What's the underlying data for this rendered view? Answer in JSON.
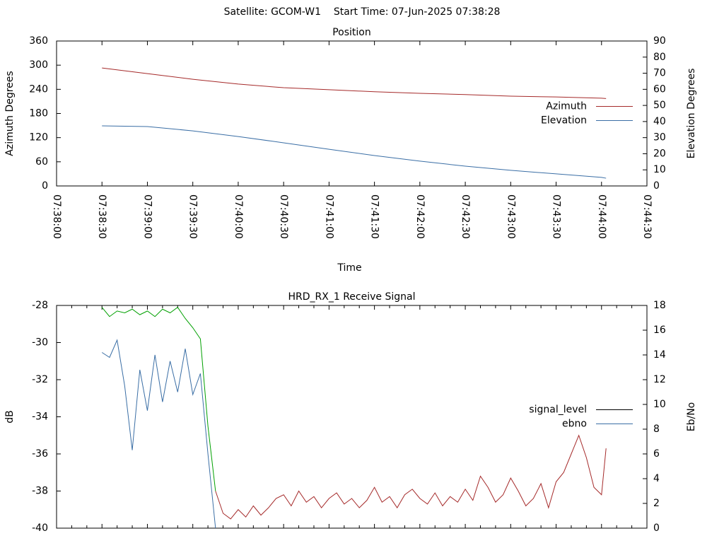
{
  "title": "Satellite: GCOM-W1    Start Time: 07-Jun-2025 07:38:28",
  "chart_data": [
    {
      "type": "line",
      "title": "Position",
      "x_label": "Time",
      "y_label": "Azimuth Degrees",
      "y2_label": "Elevation Degrees",
      "xlim": [
        "07:38:00",
        "07:44:30"
      ],
      "xticks": [
        "07:38:00",
        "07:38:30",
        "07:39:00",
        "07:39:30",
        "07:40:00",
        "07:40:30",
        "07:41:00",
        "07:41:30",
        "07:42:00",
        "07:42:30",
        "07:43:00",
        "07:43:30",
        "07:44:00",
        "07:44:30"
      ],
      "ylim": [
        0,
        360
      ],
      "yticks": [
        0,
        60,
        120,
        180,
        240,
        300,
        360
      ],
      "y2lim": [
        0,
        90
      ],
      "y2ticks": [
        0,
        10,
        20,
        30,
        40,
        50,
        60,
        70,
        80,
        90
      ],
      "legend": "right",
      "series": [
        {
          "name": "Azimuth",
          "color": "#a52a2a",
          "x": [
            "07:38:30",
            "07:39:00",
            "07:39:30",
            "07:40:00",
            "07:40:30",
            "07:41:00",
            "07:41:30",
            "07:42:00",
            "07:42:30",
            "07:43:00",
            "07:43:30",
            "07:44:00",
            "07:44:03"
          ],
          "values": [
            293,
            279,
            265,
            253,
            244,
            239,
            234,
            230,
            227,
            223,
            221,
            218,
            217
          ]
        },
        {
          "name": "Elevation",
          "color": "#3a6ea5",
          "axis": "y2",
          "x": [
            "07:38:30",
            "07:39:00",
            "07:39:30",
            "07:40:00",
            "07:40:30",
            "07:41:00",
            "07:41:30",
            "07:42:00",
            "07:42:30",
            "07:43:00",
            "07:43:30",
            "07:44:00",
            "07:44:03"
          ],
          "values": [
            37.3,
            36.9,
            34.2,
            30.7,
            26.8,
            22.8,
            18.9,
            15.4,
            12.3,
            9.7,
            7.5,
            5.3,
            4.8
          ]
        }
      ]
    },
    {
      "type": "line",
      "title": "HRD_RX_1 Receive Signal",
      "y_label": "dB",
      "y2_label": "Eb/No",
      "xlim": [
        "07:38:00",
        "07:44:30"
      ],
      "xticks": [
        "07:38:00",
        "07:38:30",
        "07:39:00",
        "07:39:30",
        "07:40:00",
        "07:40:30",
        "07:41:00",
        "07:41:30",
        "07:42:00",
        "07:42:30",
        "07:43:00",
        "07:43:30",
        "07:44:00",
        "07:44:30"
      ],
      "xtick_labels": false,
      "minor_ticks": 3,
      "ylim": [
        -40,
        -28
      ],
      "yticks": [
        -40,
        -38,
        -36,
        -34,
        -32,
        -30,
        -28
      ],
      "y2lim": [
        0,
        18
      ],
      "y2ticks": [
        0,
        2,
        4,
        6,
        8,
        10,
        12,
        14,
        16,
        18
      ],
      "legend": "right",
      "series": [
        {
          "name": "signal_level",
          "color": "#000000",
          "x": [
            "07:38:30",
            "07:38:35",
            "07:38:40",
            "07:38:45",
            "07:38:50",
            "07:38:55",
            "07:39:00",
            "07:39:05",
            "07:39:10",
            "07:39:15",
            "07:39:20",
            "07:39:25",
            "07:39:30",
            "07:39:35",
            "07:39:40",
            "07:39:45",
            "07:39:50",
            "07:39:55",
            "07:40:00",
            "07:40:05",
            "07:40:10",
            "07:40:15",
            "07:40:20",
            "07:40:25",
            "07:40:30",
            "07:40:35",
            "07:40:40",
            "07:40:45",
            "07:40:50",
            "07:40:55",
            "07:41:00",
            "07:41:05",
            "07:41:10",
            "07:41:15",
            "07:41:20",
            "07:41:25",
            "07:41:30",
            "07:41:35",
            "07:41:40",
            "07:41:45",
            "07:41:50",
            "07:41:55",
            "07:42:00",
            "07:42:05",
            "07:42:10",
            "07:42:15",
            "07:42:20",
            "07:42:25",
            "07:42:30",
            "07:42:35",
            "07:42:40",
            "07:42:45",
            "07:42:50",
            "07:42:55",
            "07:43:00",
            "07:43:05",
            "07:43:10",
            "07:43:15",
            "07:43:20",
            "07:43:25",
            "07:43:30",
            "07:43:35",
            "07:43:40",
            "07:43:45",
            "07:43:50",
            "07:43:55",
            "07:44:00",
            "07:44:03"
          ],
          "values": [
            -28.1,
            -28.6,
            -28.3,
            -28.4,
            -28.2,
            -28.5,
            -28.3,
            -28.6,
            -28.2,
            -28.4,
            -28.1,
            -28.7,
            -29.2,
            -29.8,
            -34.5,
            -38.0,
            -39.2,
            -39.5,
            -39.0,
            -39.4,
            -38.8,
            -39.3,
            -38.9,
            -38.4,
            -38.2,
            -38.8,
            -38.0,
            -38.6,
            -38.3,
            -38.9,
            -38.4,
            -38.1,
            -38.7,
            -38.4,
            -38.9,
            -38.5,
            -37.8,
            -38.6,
            -38.3,
            -38.9,
            -38.2,
            -37.9,
            -38.4,
            -38.7,
            -38.1,
            -38.8,
            -38.3,
            -38.6,
            -37.9,
            -38.5,
            -37.2,
            -37.8,
            -38.6,
            -38.2,
            -37.3,
            -38.0,
            -38.8,
            -38.4,
            -37.6,
            -38.9,
            -37.5,
            -37.0,
            -36.0,
            -35.0,
            -36.2,
            -37.8,
            -38.2,
            -35.7
          ],
          "colors": [
            "#00a000",
            "#00a000",
            "#00a000",
            "#00a000",
            "#00a000",
            "#00a000",
            "#00a000",
            "#00a000",
            "#00a000",
            "#00a000",
            "#00a000",
            "#00a000",
            "#00a000",
            "#00a000",
            "#00a000",
            "#00a000",
            "#a52a2a",
            "#a52a2a",
            "#a52a2a",
            "#a52a2a",
            "#a52a2a",
            "#a52a2a",
            "#a52a2a",
            "#a52a2a",
            "#a52a2a",
            "#a52a2a",
            "#a52a2a",
            "#a52a2a",
            "#a52a2a",
            "#a52a2a",
            "#a52a2a",
            "#a52a2a",
            "#a52a2a",
            "#a52a2a",
            "#a52a2a",
            "#a52a2a",
            "#a52a2a",
            "#a52a2a",
            "#a52a2a",
            "#a52a2a",
            "#a52a2a",
            "#a52a2a",
            "#a52a2a",
            "#a52a2a",
            "#a52a2a",
            "#a52a2a",
            "#a52a2a",
            "#a52a2a",
            "#a52a2a",
            "#a52a2a",
            "#a52a2a",
            "#a52a2a",
            "#a52a2a",
            "#a52a2a",
            "#a52a2a",
            "#a52a2a",
            "#a52a2a",
            "#a52a2a",
            "#a52a2a",
            "#a52a2a",
            "#a52a2a",
            "#a52a2a",
            "#a52a2a",
            "#a52a2a",
            "#a52a2a",
            "#a52a2a",
            "#a52a2a",
            "#a52a2a"
          ]
        },
        {
          "name": "ebno",
          "color": "#3a6ea5",
          "axis": "y2",
          "x": [
            "07:38:30",
            "07:38:35",
            "07:38:40",
            "07:38:45",
            "07:38:50",
            "07:38:55",
            "07:39:00",
            "07:39:05",
            "07:39:10",
            "07:39:15",
            "07:39:20",
            "07:39:25",
            "07:39:30",
            "07:39:35",
            "07:39:40",
            "07:39:45"
          ],
          "values": [
            14.2,
            13.8,
            15.2,
            11.5,
            6.3,
            12.8,
            9.5,
            14.0,
            10.2,
            13.5,
            11.0,
            14.5,
            10.8,
            12.5,
            6.0,
            0.0
          ]
        }
      ]
    }
  ]
}
